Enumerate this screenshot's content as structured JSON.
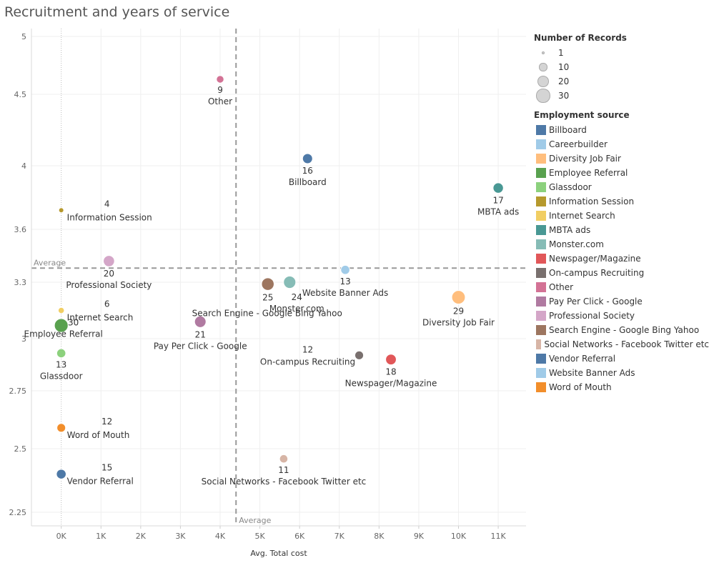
{
  "title": "Recruitment and years of service",
  "chart_data": {
    "type": "scatter",
    "title": "Recruitment and years of service",
    "xlabel": "Avg. Total cost",
    "ylabel": "",
    "xlim": [
      -750,
      11700
    ],
    "ylim": [
      2.2,
      5.05
    ],
    "x_ticks": [
      0,
      1000,
      2000,
      3000,
      4000,
      5000,
      6000,
      7000,
      8000,
      9000,
      10000,
      11000
    ],
    "x_tick_labels": [
      "0K",
      "1K",
      "2K",
      "3K",
      "4K",
      "5K",
      "6K",
      "7K",
      "8K",
      "9K",
      "10K",
      "11K"
    ],
    "y_ticks": [
      2.25,
      2.5,
      2.75,
      3,
      3.3,
      3.6,
      4,
      4.5,
      5
    ],
    "y_tick_labels": [
      "2.25",
      "2.5",
      "2.75",
      "3",
      "3.3",
      "3.6",
      "4",
      "4.5",
      "5"
    ],
    "reference_lines": {
      "x_average": 4400,
      "y_average": 3.38,
      "x_label": "Average",
      "y_label": "Average"
    },
    "grid": true,
    "legend_position": "right",
    "points": [
      {
        "name": "Other",
        "count": 9,
        "x": 4000,
        "y": 4.63,
        "color": "#d37295"
      },
      {
        "name": "Billboard",
        "count": 16,
        "x": 6200,
        "y": 4.05,
        "color": "#4e79a7"
      },
      {
        "name": "MBTA ads",
        "count": 17,
        "x": 11000,
        "y": 3.86,
        "color": "#499894"
      },
      {
        "name": "Information Session",
        "count": 4,
        "x": 0,
        "y": 3.72,
        "color": "#b6992d"
      },
      {
        "name": "Professional Society",
        "count": 20,
        "x": 1200,
        "y": 3.42,
        "color": "#d4a6c8"
      },
      {
        "name": "Website Banner Ads",
        "count": 13,
        "x": 7150,
        "y": 3.37,
        "color": "#a0cbe8"
      },
      {
        "name": "Search Engine - Google Bing Yahoo",
        "count": 25,
        "x": 5200,
        "y": 3.29,
        "color": "#9d7660"
      },
      {
        "name": "Monster.com",
        "count": 24,
        "x": 5750,
        "y": 3.3,
        "color": "#86bcb6"
      },
      {
        "name": "Diversity Job Fair",
        "count": 29,
        "x": 10000,
        "y": 3.22,
        "color": "#ffbe7d"
      },
      {
        "name": "Internet Search",
        "count": 6,
        "x": 0,
        "y": 3.15,
        "color": "#f1ce63"
      },
      {
        "name": "Pay Per Click - Google",
        "count": 21,
        "x": 3500,
        "y": 3.09,
        "color": "#b07aa1"
      },
      {
        "name": "Employee Referral",
        "count": 30,
        "x": 0,
        "y": 3.07,
        "color": "#59a14f"
      },
      {
        "name": "Glassdoor",
        "count": 13,
        "x": 0,
        "y": 2.93,
        "color": "#8cd17d"
      },
      {
        "name": "On-campus Recruiting",
        "count": 12,
        "x": 7500,
        "y": 2.92,
        "color": "#79706e"
      },
      {
        "name": "Newspager/Magazine",
        "count": 18,
        "x": 8300,
        "y": 2.9,
        "color": "#e15759"
      },
      {
        "name": "Word of Mouth",
        "count": 12,
        "x": 0,
        "y": 2.59,
        "color": "#f28e2b"
      },
      {
        "name": "Social Networks - Facebook Twitter etc",
        "count": 11,
        "x": 5600,
        "y": 2.46,
        "color": "#d7b5a6"
      },
      {
        "name": "Vendor Referral",
        "count": 15,
        "x": 0,
        "y": 2.4,
        "color": "#4e79a7"
      }
    ]
  },
  "legend": {
    "size_title": "Number of Records",
    "size_entries": [
      {
        "label": "1",
        "value": 1
      },
      {
        "label": "10",
        "value": 10
      },
      {
        "label": "20",
        "value": 20
      },
      {
        "label": "30",
        "value": 30
      }
    ],
    "color_title": "Employment source",
    "color_entries": [
      {
        "label": "Billboard",
        "color": "#4e79a7"
      },
      {
        "label": "Careerbuilder",
        "color": "#a0cbe8"
      },
      {
        "label": "Diversity Job Fair",
        "color": "#ffbe7d"
      },
      {
        "label": "Employee Referral",
        "color": "#59a14f"
      },
      {
        "label": "Glassdoor",
        "color": "#8cd17d"
      },
      {
        "label": "Information Session",
        "color": "#b6992d"
      },
      {
        "label": "Internet Search",
        "color": "#f1ce63"
      },
      {
        "label": "MBTA ads",
        "color": "#499894"
      },
      {
        "label": "Monster.com",
        "color": "#86bcb6"
      },
      {
        "label": "Newspager/Magazine",
        "color": "#e15759"
      },
      {
        "label": "On-campus Recruiting",
        "color": "#79706e"
      },
      {
        "label": "Other",
        "color": "#d37295"
      },
      {
        "label": "Pay Per Click - Google",
        "color": "#b07aa1"
      },
      {
        "label": "Professional Society",
        "color": "#d4a6c8"
      },
      {
        "label": "Search Engine - Google Bing Yahoo",
        "color": "#9d7660"
      },
      {
        "label": "Social Networks - Facebook Twitter etc",
        "color": "#d7b5a6"
      },
      {
        "label": "Vendor Referral",
        "color": "#4e79a7"
      },
      {
        "label": "Website Banner Ads",
        "color": "#a0cbe8"
      },
      {
        "label": "Word of Mouth",
        "color": "#f28e2b"
      }
    ]
  }
}
